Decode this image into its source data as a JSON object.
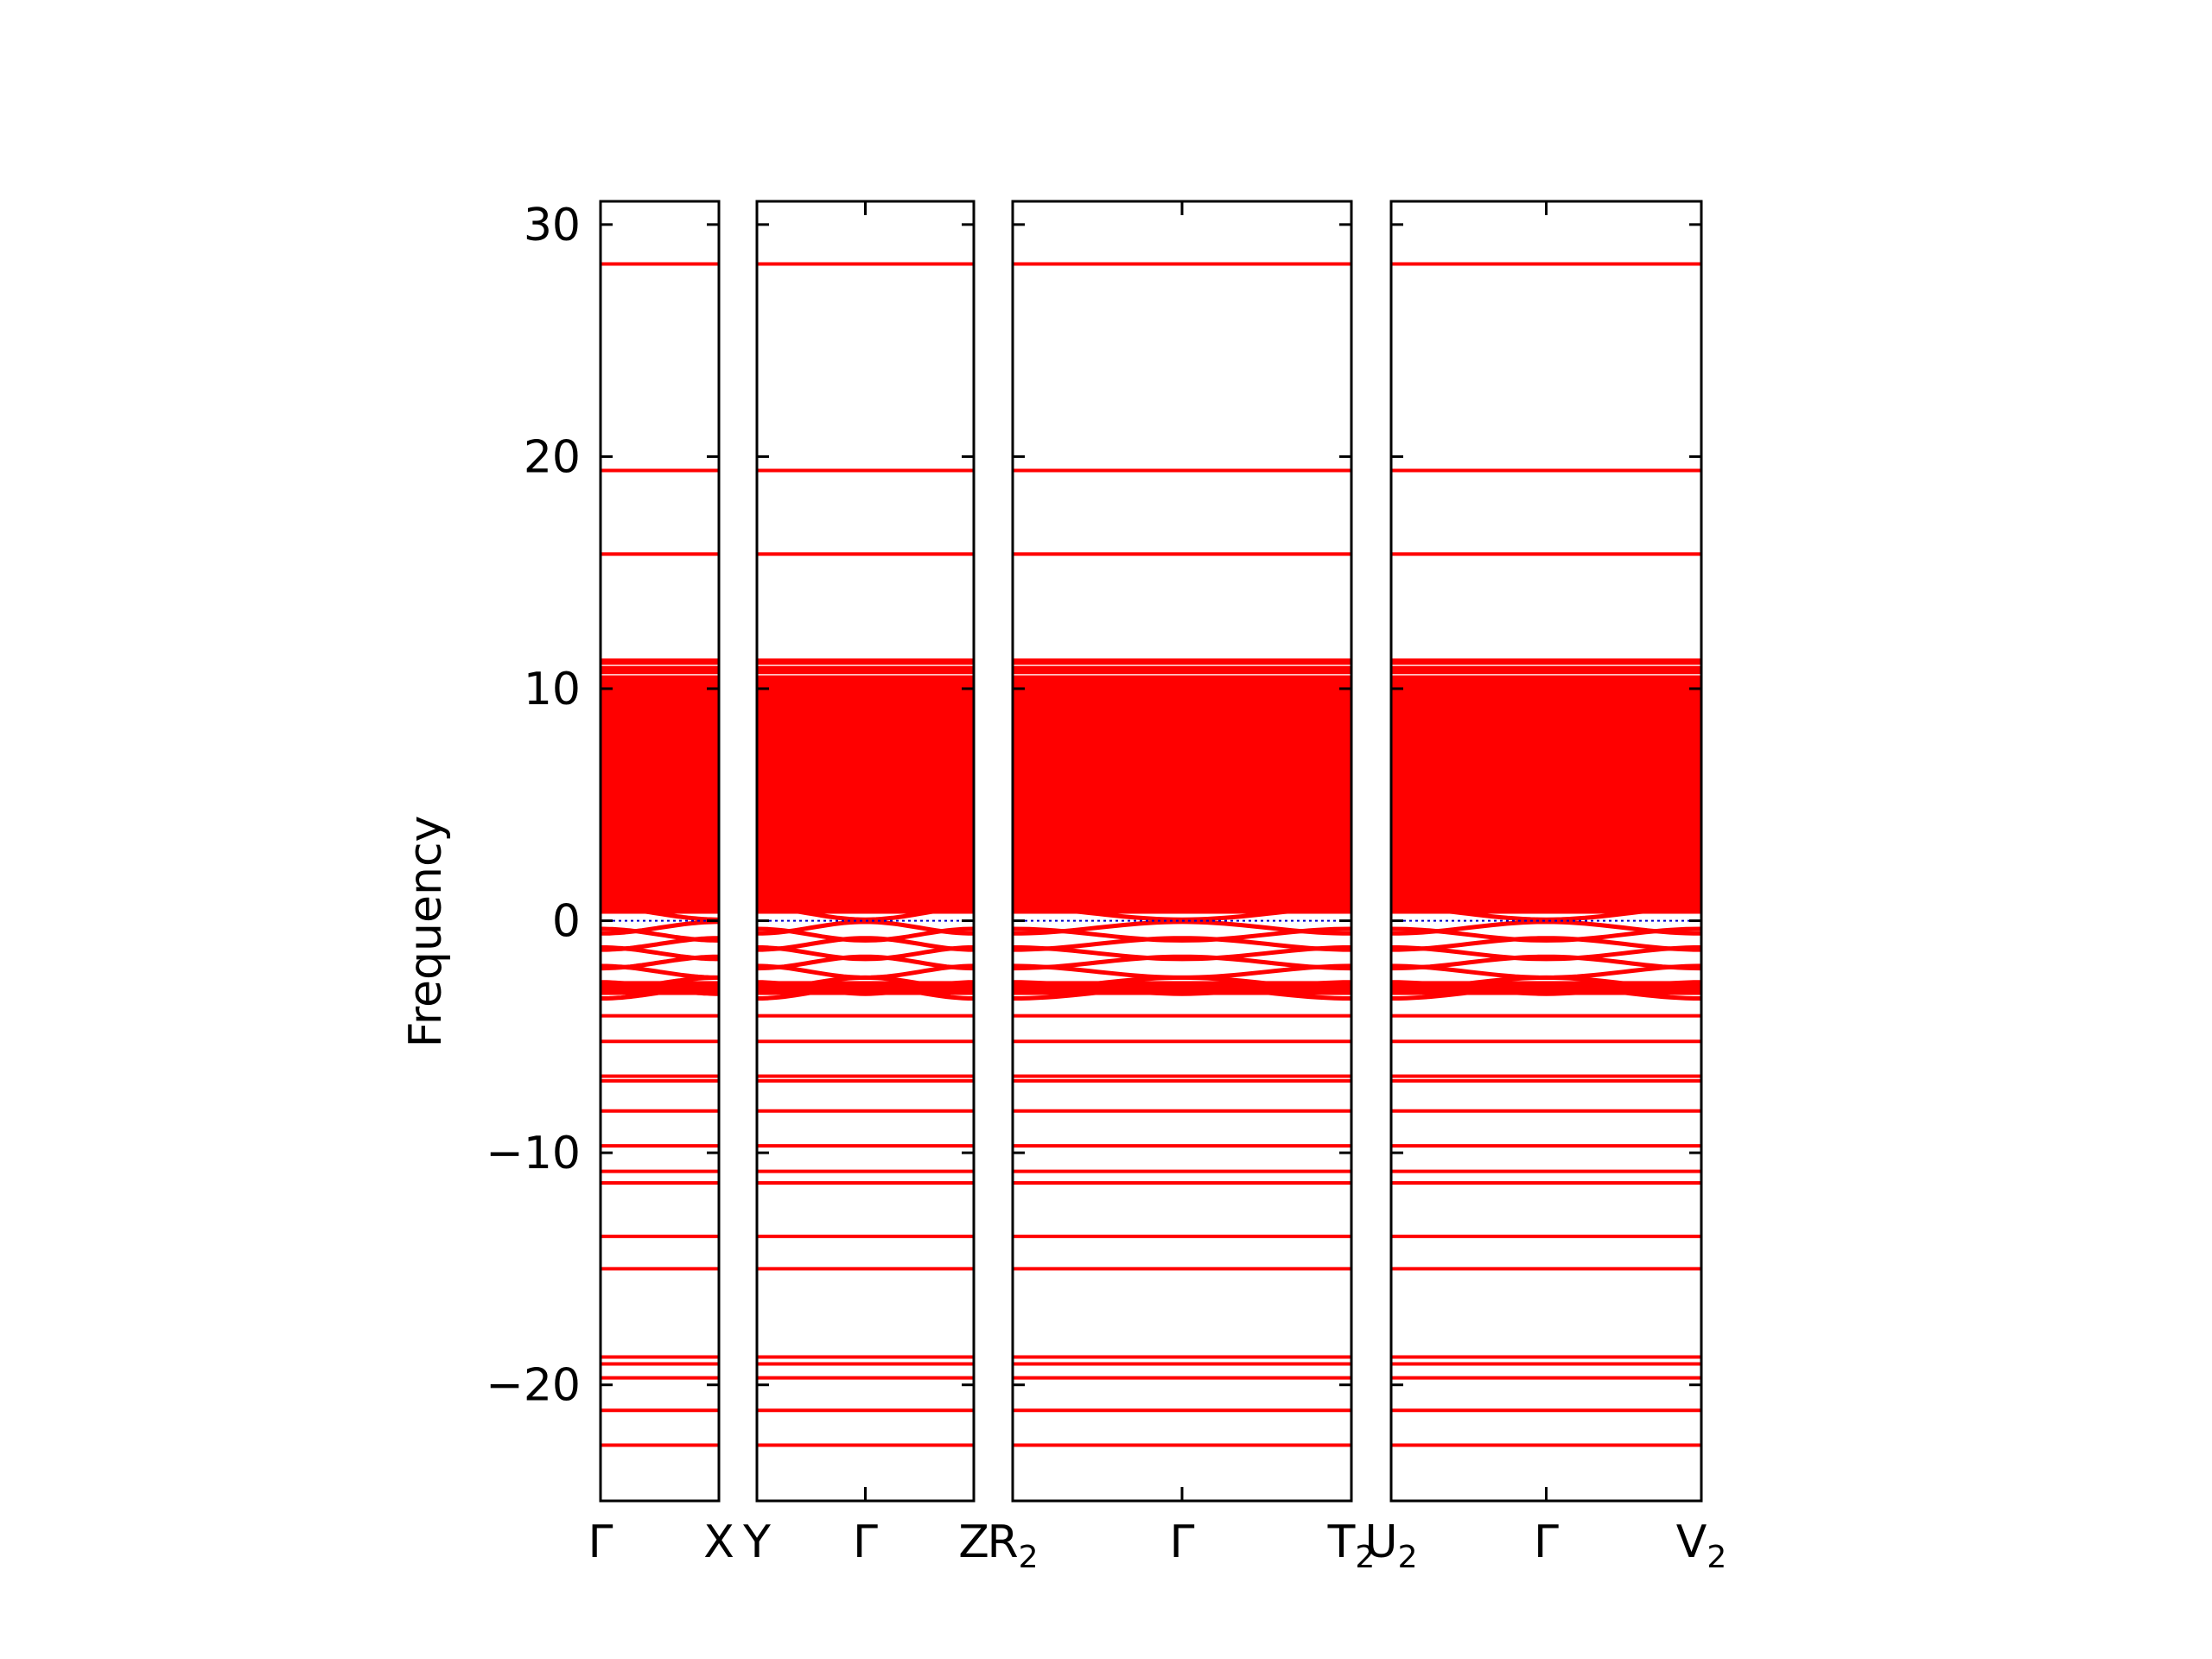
{
  "chart_data": {
    "type": "line",
    "title": "",
    "xlabel": "",
    "ylabel": "Frequency",
    "ylim": [
      -25,
      31
    ],
    "yticks": [
      30,
      20,
      10,
      0,
      -10,
      -20
    ],
    "ytick_labels": [
      "30",
      "20",
      "10",
      "0",
      "−10",
      "−20"
    ],
    "line_color": "#ff0000",
    "zero_line_color": "#0000cc",
    "zero_line_style": "dotted",
    "grid": false,
    "panels": [
      {
        "path": [
          "Γ",
          "X"
        ],
        "ticks": [
          {
            "text": "Γ",
            "sub": ""
          },
          {
            "text": "X",
            "sub": ""
          }
        ]
      },
      {
        "path": [
          "Y",
          "Γ",
          "Z"
        ],
        "ticks": [
          {
            "text": "Y",
            "sub": ""
          },
          {
            "text": "Γ",
            "sub": ""
          },
          {
            "text": "Z",
            "sub": ""
          }
        ]
      },
      {
        "path": [
          "R2",
          "Γ",
          "T2"
        ],
        "ticks": [
          {
            "text": "R",
            "sub": "2"
          },
          {
            "text": "Γ",
            "sub": ""
          },
          {
            "text": "T",
            "sub": "2"
          }
        ]
      },
      {
        "path": [
          "U2",
          "Γ",
          "V2"
        ],
        "ticks": [
          {
            "text": "U",
            "sub": "2"
          },
          {
            "text": "Γ",
            "sub": ""
          },
          {
            "text": "V",
            "sub": "2"
          }
        ]
      }
    ],
    "flat_bands": [
      28.3,
      19.4,
      15.8,
      -4.1,
      -5.2,
      -6.7,
      -6.9,
      -8.2,
      -9.7,
      -10.8,
      -11.3,
      -13.6,
      -15.0,
      -18.8,
      -19.1,
      -19.7,
      -21.1,
      -22.6
    ],
    "dense_band_range": [
      0.3,
      11.3
    ],
    "near_fermi_bands": [
      0.3,
      -0.3,
      -0.6,
      -1.0,
      -1.4,
      -1.8,
      -2.2,
      -2.7,
      -2.9,
      -3.1
    ],
    "series": [
      {
        "name": "",
        "values": []
      }
    ]
  }
}
